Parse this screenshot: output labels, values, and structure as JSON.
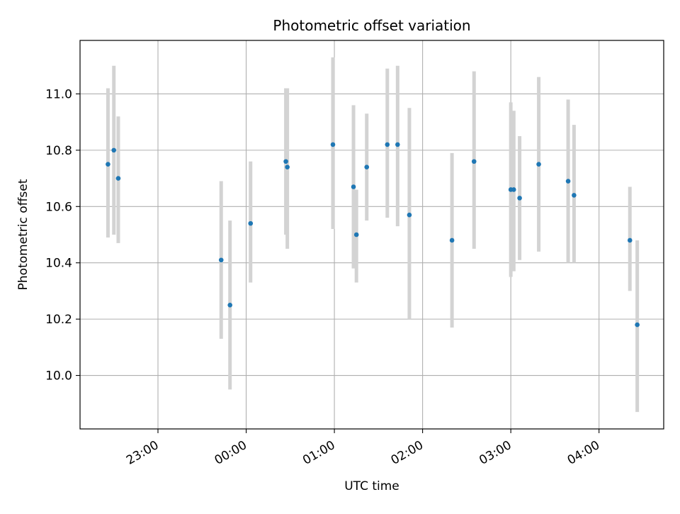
{
  "chart_data": {
    "type": "scatter",
    "title": "Photometric offset variation",
    "xlabel": "UTC time",
    "ylabel": "Photometric offset",
    "x_axis": {
      "kind": "time",
      "range": [
        "22:07",
        "04:44"
      ]
    },
    "ylim": [
      9.81,
      11.19
    ],
    "x_ticks": [
      "23:00",
      "00:00",
      "01:00",
      "02:00",
      "03:00",
      "04:00"
    ],
    "y_ticks": [
      "10.0",
      "10.2",
      "10.4",
      "10.6",
      "10.8",
      "11.0"
    ],
    "grid": true,
    "colors": {
      "point": "#1f77b4",
      "errorbar": "#d3d3d3",
      "grid": "#b0b0b0"
    },
    "series": [
      {
        "name": "",
        "points": [
          {
            "x": "22:26",
            "y": 10.75,
            "lo": 10.49,
            "hi": 11.02
          },
          {
            "x": "22:30",
            "y": 10.8,
            "lo": 10.5,
            "hi": 11.1
          },
          {
            "x": "22:33",
            "y": 10.7,
            "lo": 10.47,
            "hi": 10.92
          },
          {
            "x": "23:43",
            "y": 10.41,
            "lo": 10.13,
            "hi": 10.69
          },
          {
            "x": "23:49",
            "y": 10.25,
            "lo": 9.95,
            "hi": 10.55
          },
          {
            "x": "00:03",
            "y": 10.54,
            "lo": 10.33,
            "hi": 10.76
          },
          {
            "x": "00:27",
            "y": 10.76,
            "lo": 10.5,
            "hi": 11.02
          },
          {
            "x": "00:28",
            "y": 10.74,
            "lo": 10.45,
            "hi": 11.02
          },
          {
            "x": "00:59",
            "y": 10.82,
            "lo": 10.52,
            "hi": 11.13
          },
          {
            "x": "01:13",
            "y": 10.67,
            "lo": 10.38,
            "hi": 10.96
          },
          {
            "x": "01:15",
            "y": 10.5,
            "lo": 10.33,
            "hi": 10.66
          },
          {
            "x": "01:22",
            "y": 10.74,
            "lo": 10.55,
            "hi": 10.93
          },
          {
            "x": "01:36",
            "y": 10.82,
            "lo": 10.56,
            "hi": 11.09
          },
          {
            "x": "01:43",
            "y": 10.82,
            "lo": 10.53,
            "hi": 11.1
          },
          {
            "x": "01:51",
            "y": 10.57,
            "lo": 10.2,
            "hi": 10.95
          },
          {
            "x": "02:20",
            "y": 10.48,
            "lo": 10.17,
            "hi": 10.79
          },
          {
            "x": "02:35",
            "y": 10.76,
            "lo": 10.45,
            "hi": 11.08
          },
          {
            "x": "03:00",
            "y": 10.66,
            "lo": 10.35,
            "hi": 10.97
          },
          {
            "x": "03:02",
            "y": 10.66,
            "lo": 10.37,
            "hi": 10.94
          },
          {
            "x": "03:06",
            "y": 10.63,
            "lo": 10.41,
            "hi": 10.85
          },
          {
            "x": "03:19",
            "y": 10.75,
            "lo": 10.44,
            "hi": 11.06
          },
          {
            "x": "03:39",
            "y": 10.69,
            "lo": 10.4,
            "hi": 10.98
          },
          {
            "x": "03:43",
            "y": 10.64,
            "lo": 10.4,
            "hi": 10.89
          },
          {
            "x": "04:21",
            "y": 10.48,
            "lo": 10.3,
            "hi": 10.67
          },
          {
            "x": "04:26",
            "y": 10.18,
            "lo": 9.87,
            "hi": 10.48
          }
        ]
      }
    ]
  }
}
